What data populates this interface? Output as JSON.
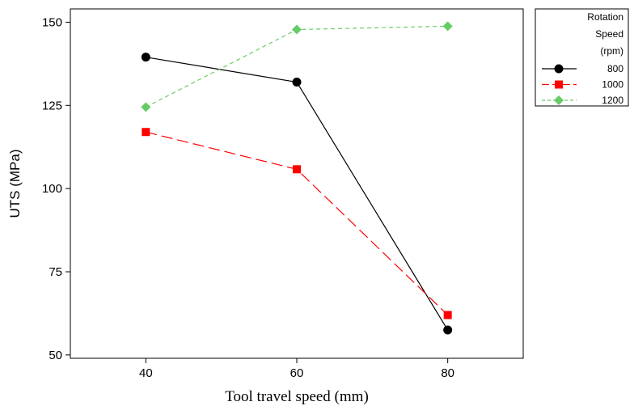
{
  "chart_data": {
    "type": "line",
    "title": "",
    "xlabel": "Tool travel speed (mm)",
    "ylabel": "UTS (MPa)",
    "xlim": [
      30,
      90
    ],
    "ylim": [
      49,
      154
    ],
    "x": [
      40,
      60,
      80
    ],
    "x_ticks": [
      "40",
      "60",
      "80"
    ],
    "y_ticks": [
      "50",
      "75",
      "100",
      "125",
      "150"
    ],
    "grid": false,
    "legend": {
      "position": "right",
      "title_lines": [
        "Rotation",
        "Speed",
        "(rpm)"
      ]
    },
    "series": [
      {
        "name": "800",
        "values": [
          139.5,
          132,
          57.5
        ],
        "color": "#000000",
        "marker": "circle",
        "dash": "solid"
      },
      {
        "name": "1000",
        "values": [
          117,
          105.8,
          62
        ],
        "color": "#ff0000",
        "marker": "square",
        "dash": "long-dash"
      },
      {
        "name": "1200",
        "values": [
          124.5,
          147.8,
          148.8
        ],
        "color": "#66cc66",
        "marker": "diamond",
        "dash": "short-dash"
      }
    ]
  }
}
